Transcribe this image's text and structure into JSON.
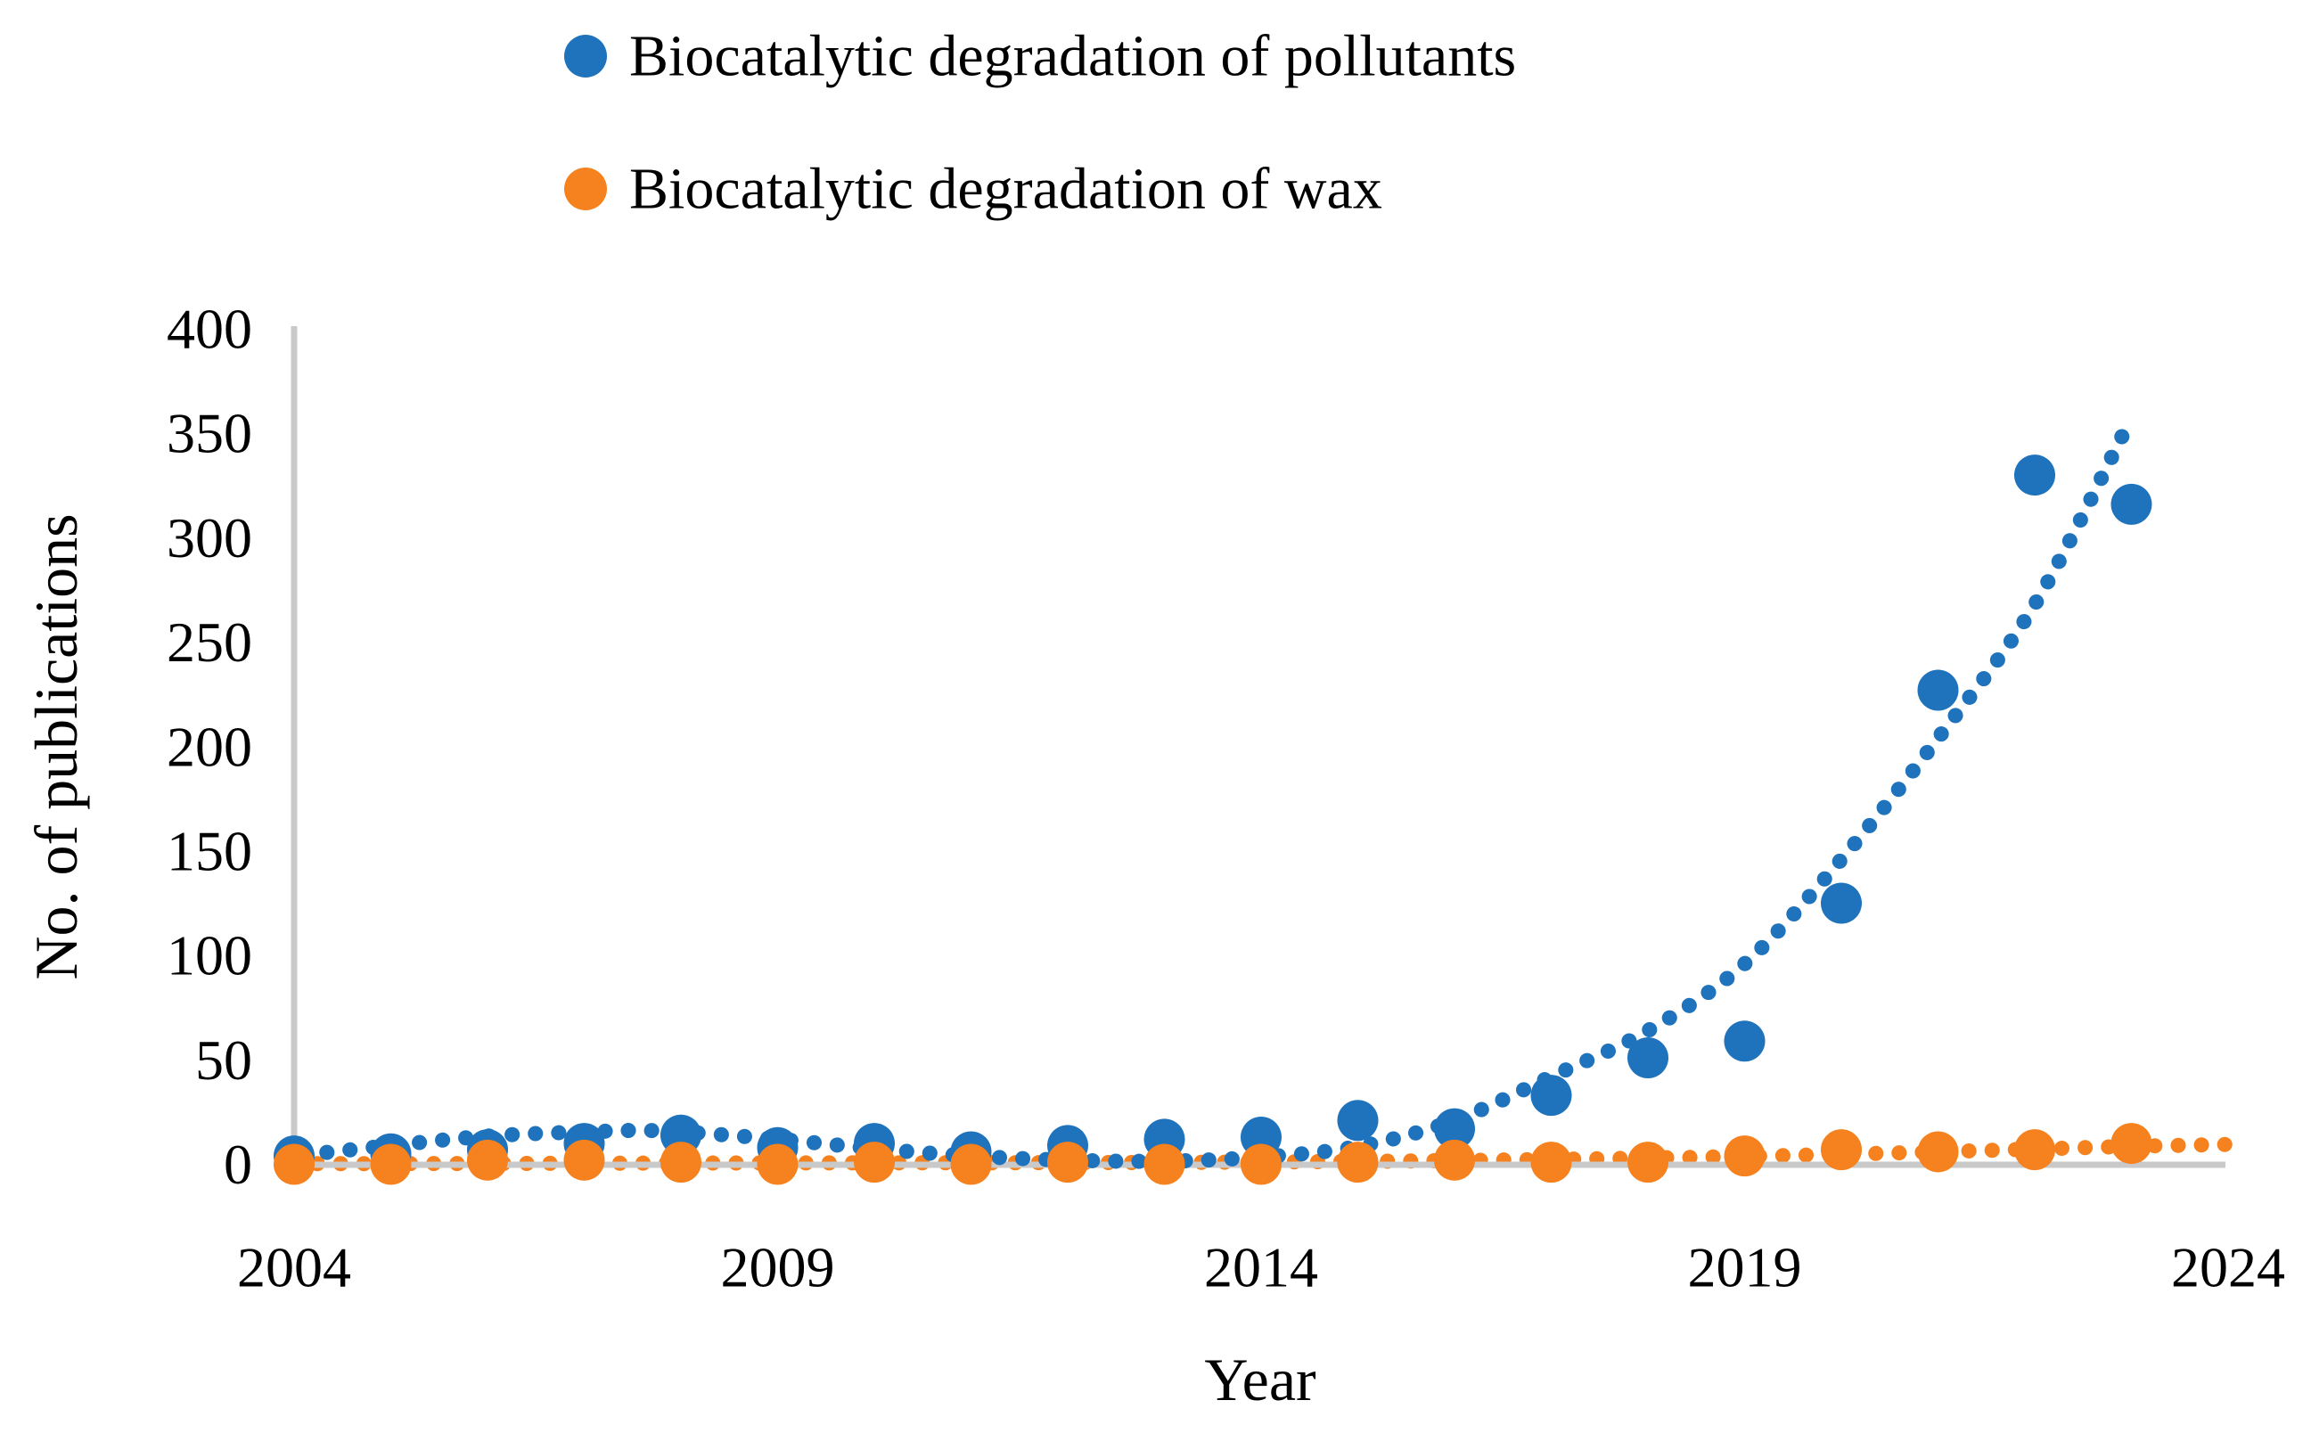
{
  "chart_data": {
    "type": "scatter",
    "title": "",
    "xlabel": "Year",
    "ylabel": "No. of publications",
    "xlim": [
      2004,
      2024
    ],
    "ylim": [
      0,
      400
    ],
    "x_ticks": [
      "2004",
      "2009",
      "2014",
      "2019",
      "2024"
    ],
    "y_ticks": [
      "0",
      "50",
      "100",
      "150",
      "200",
      "250",
      "300",
      "350",
      "400"
    ],
    "grid": false,
    "legend_position": "top-left-two-rows",
    "axis_color": "#C9C9C9",
    "text_color": "#000000",
    "years": [
      2004,
      2005,
      2006,
      2007,
      2008,
      2009,
      2010,
      2011,
      2012,
      2013,
      2014,
      2015,
      2016,
      2017,
      2018,
      2019,
      2020,
      2021,
      2022,
      2023
    ],
    "series": [
      {
        "name": "Biocatalytic degradation of pollutants",
        "color": "#1F72BC",
        "marker": "circle",
        "values": [
          4,
          5,
          7,
          10,
          14,
          8,
          10,
          6,
          9,
          12,
          13,
          21,
          17,
          33,
          51,
          59,
          125,
          227,
          330,
          316
        ],
        "trendline": {
          "style": "dotted",
          "points": [
            [
              2004.1,
              4.5
            ],
            [
              2005,
              9
            ],
            [
              2006,
              13.5
            ],
            [
              2007,
              15.5
            ],
            [
              2007.8,
              16
            ],
            [
              2009,
              12
            ],
            [
              2010,
              7.5
            ],
            [
              2011,
              4
            ],
            [
              2012,
              2
            ],
            [
              2013,
              1.5
            ],
            [
              2014,
              3.5
            ],
            [
              2015,
              8.5
            ],
            [
              2016,
              21
            ],
            [
              2017,
              42
            ],
            [
              2018,
              64
            ],
            [
              2019,
              96
            ],
            [
              2020,
              146
            ],
            [
              2021,
              204
            ],
            [
              2022,
              268
            ],
            [
              2022.93,
              351
            ]
          ]
        }
      },
      {
        "name": "Biocatalytic degradation of wax",
        "color": "#F5821E",
        "marker": "circle",
        "values": [
          0,
          0,
          2,
          2,
          1,
          0,
          1,
          0,
          1,
          0,
          0,
          1,
          2,
          1,
          1,
          4,
          7,
          6,
          7,
          10
        ],
        "trendline": {
          "style": "dotted",
          "points": [
            [
              2004,
              0.3
            ],
            [
              2006,
              0.4
            ],
            [
              2008,
              0.6
            ],
            [
              2010,
              0.7
            ],
            [
              2012,
              0.8
            ],
            [
              2014,
              1.1
            ],
            [
              2016,
              1.8
            ],
            [
              2018,
              3
            ],
            [
              2019,
              3.8
            ],
            [
              2020,
              4.8
            ],
            [
              2021,
              6
            ],
            [
              2022,
              7.3
            ],
            [
              2023,
              8.6
            ],
            [
              2023.97,
              9.5
            ]
          ]
        }
      }
    ]
  }
}
